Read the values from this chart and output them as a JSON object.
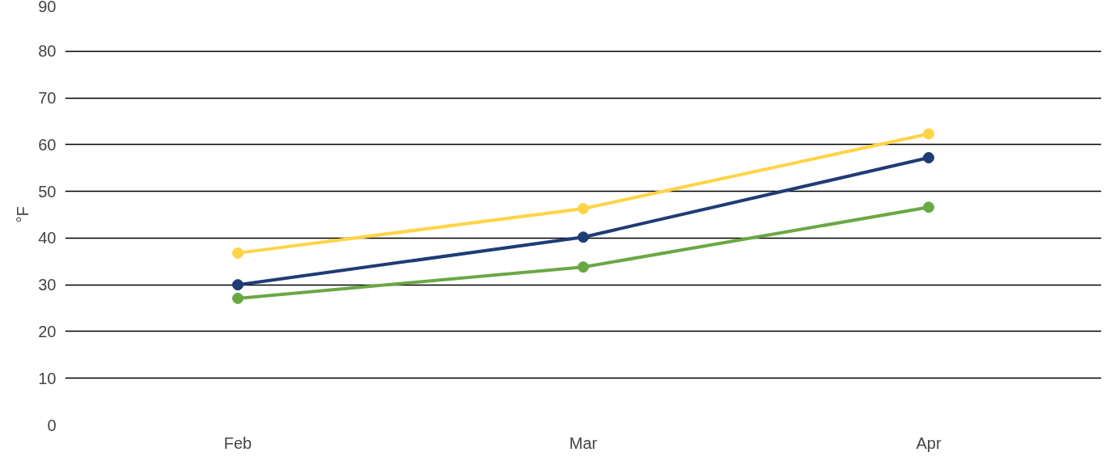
{
  "chart_data": {
    "type": "line",
    "ylabel": "°F",
    "categories": [
      "Feb",
      "Mar",
      "Apr"
    ],
    "series": [
      {
        "color": "#ffd447",
        "values": [
          36.8,
          46.3,
          62.3
        ]
      },
      {
        "color": "#1f3c74",
        "values": [
          30,
          40.2,
          57.2
        ]
      },
      {
        "color": "#6aa844",
        "values": [
          27.1,
          33.8,
          46.6
        ]
      }
    ],
    "ylim": [
      0,
      90
    ],
    "yticks": [
      0,
      10,
      20,
      30,
      40,
      50,
      60,
      70,
      80,
      90
    ],
    "grid": "y",
    "marker": "circle",
    "line_style": "solid"
  }
}
